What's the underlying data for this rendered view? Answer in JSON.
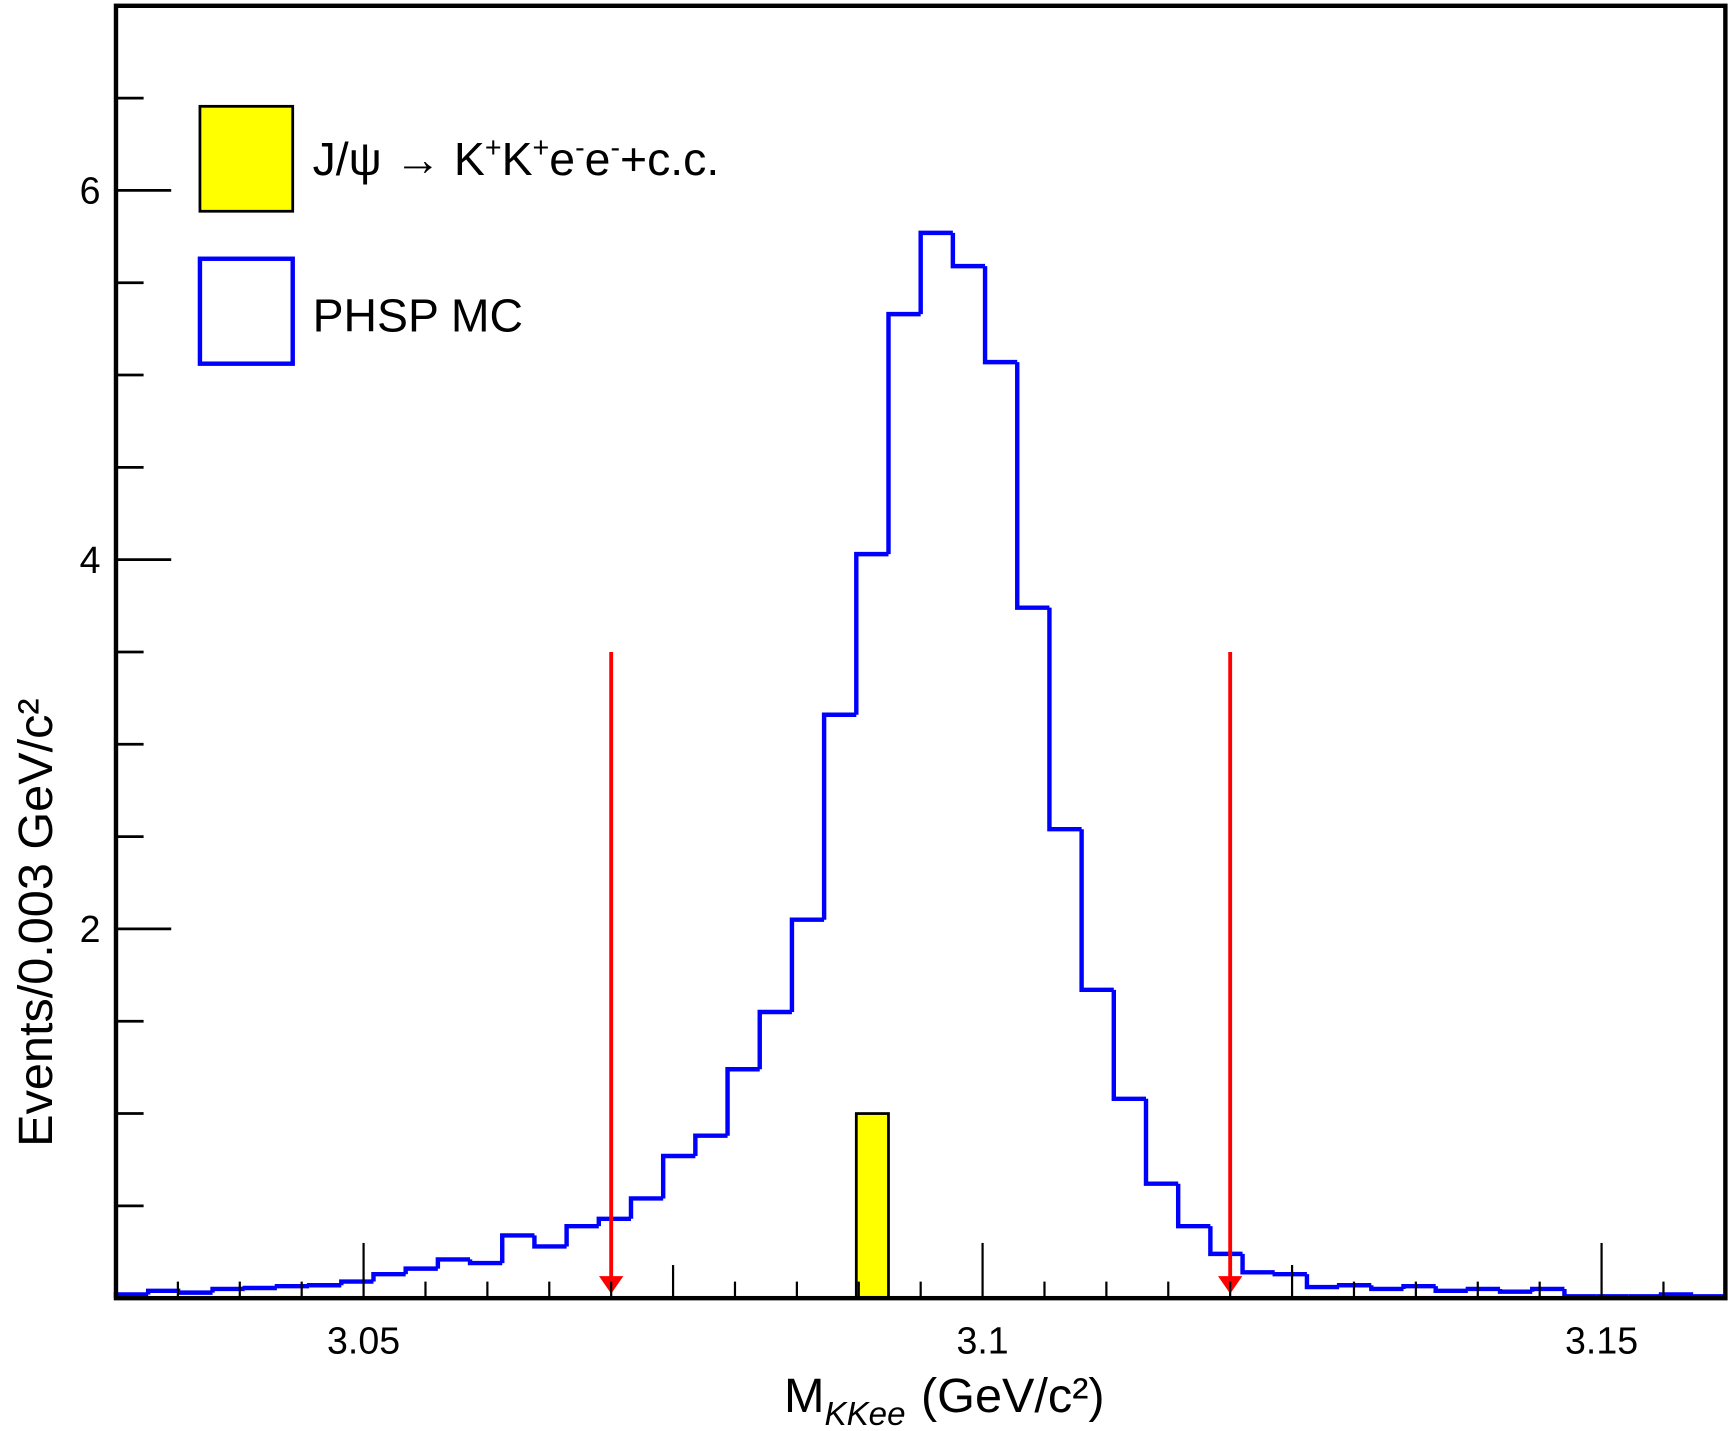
{
  "chart_data": {
    "type": "bar",
    "subtype": "histogram",
    "xlabel": "M",
    "xlabel_sub": "KKee",
    "xlabel_unit": "(GeV/c²)",
    "ylabel": "Events/0.003 GeV/c²",
    "xlim": [
      3.03,
      3.16
    ],
    "ylim": [
      0,
      7
    ],
    "x_ticks": [
      "3.05",
      "3.1",
      "3.15"
    ],
    "x_tick_values": [
      3.05,
      3.1,
      3.15
    ],
    "y_ticks": [
      "2",
      "4",
      "6"
    ],
    "y_tick_values": [
      2,
      4,
      6
    ],
    "grid": false,
    "legend_placement": "top-left",
    "bin_edges_start": 3.03,
    "bin_width": 0.0026,
    "series": [
      {
        "name": "PHSP MC",
        "style": "step",
        "color": "#0000ff",
        "values": [
          0.02,
          0.04,
          0.03,
          0.05,
          0.055,
          0.065,
          0.07,
          0.09,
          0.13,
          0.16,
          0.21,
          0.19,
          0.34,
          0.28,
          0.39,
          0.43,
          0.54,
          0.77,
          0.88,
          1.24,
          1.55,
          2.05,
          3.16,
          4.03,
          5.33,
          5.77,
          5.59,
          5.07,
          3.74,
          2.54,
          1.67,
          1.08,
          0.62,
          0.39,
          0.24,
          0.14,
          0.13,
          0.06,
          0.07,
          0.05,
          0.065,
          0.04,
          0.05,
          0.035,
          0.05,
          0.01,
          0.01,
          0.01,
          0.02,
          0.01
        ]
      },
      {
        "name": "J/ψ → K⁺K⁺e⁻e⁻+c.c.",
        "style": "filled",
        "color": "#ffff00",
        "bins": [
          {
            "x_low": 3.0898,
            "x_high": 3.0924,
            "value": 1
          }
        ]
      }
    ],
    "annotations": [
      {
        "type": "arrow",
        "x": 3.07,
        "y_from": 3.5,
        "y_to": 0,
        "color": "#ff0000"
      },
      {
        "type": "arrow",
        "x": 3.12,
        "y_from": 3.5,
        "y_to": 0,
        "color": "#ff0000"
      }
    ],
    "legend": [
      {
        "label_main": "J/ψ → K",
        "sup1": "+",
        "mid1": "K",
        "sup2": "+",
        "mid2": "e",
        "sup3": "-",
        "mid3": "e",
        "sup4": "-",
        "tail": "+c.c.",
        "swatch": "filled-yellow"
      },
      {
        "label": "PHSP MC",
        "swatch": "open-blue"
      }
    ]
  }
}
